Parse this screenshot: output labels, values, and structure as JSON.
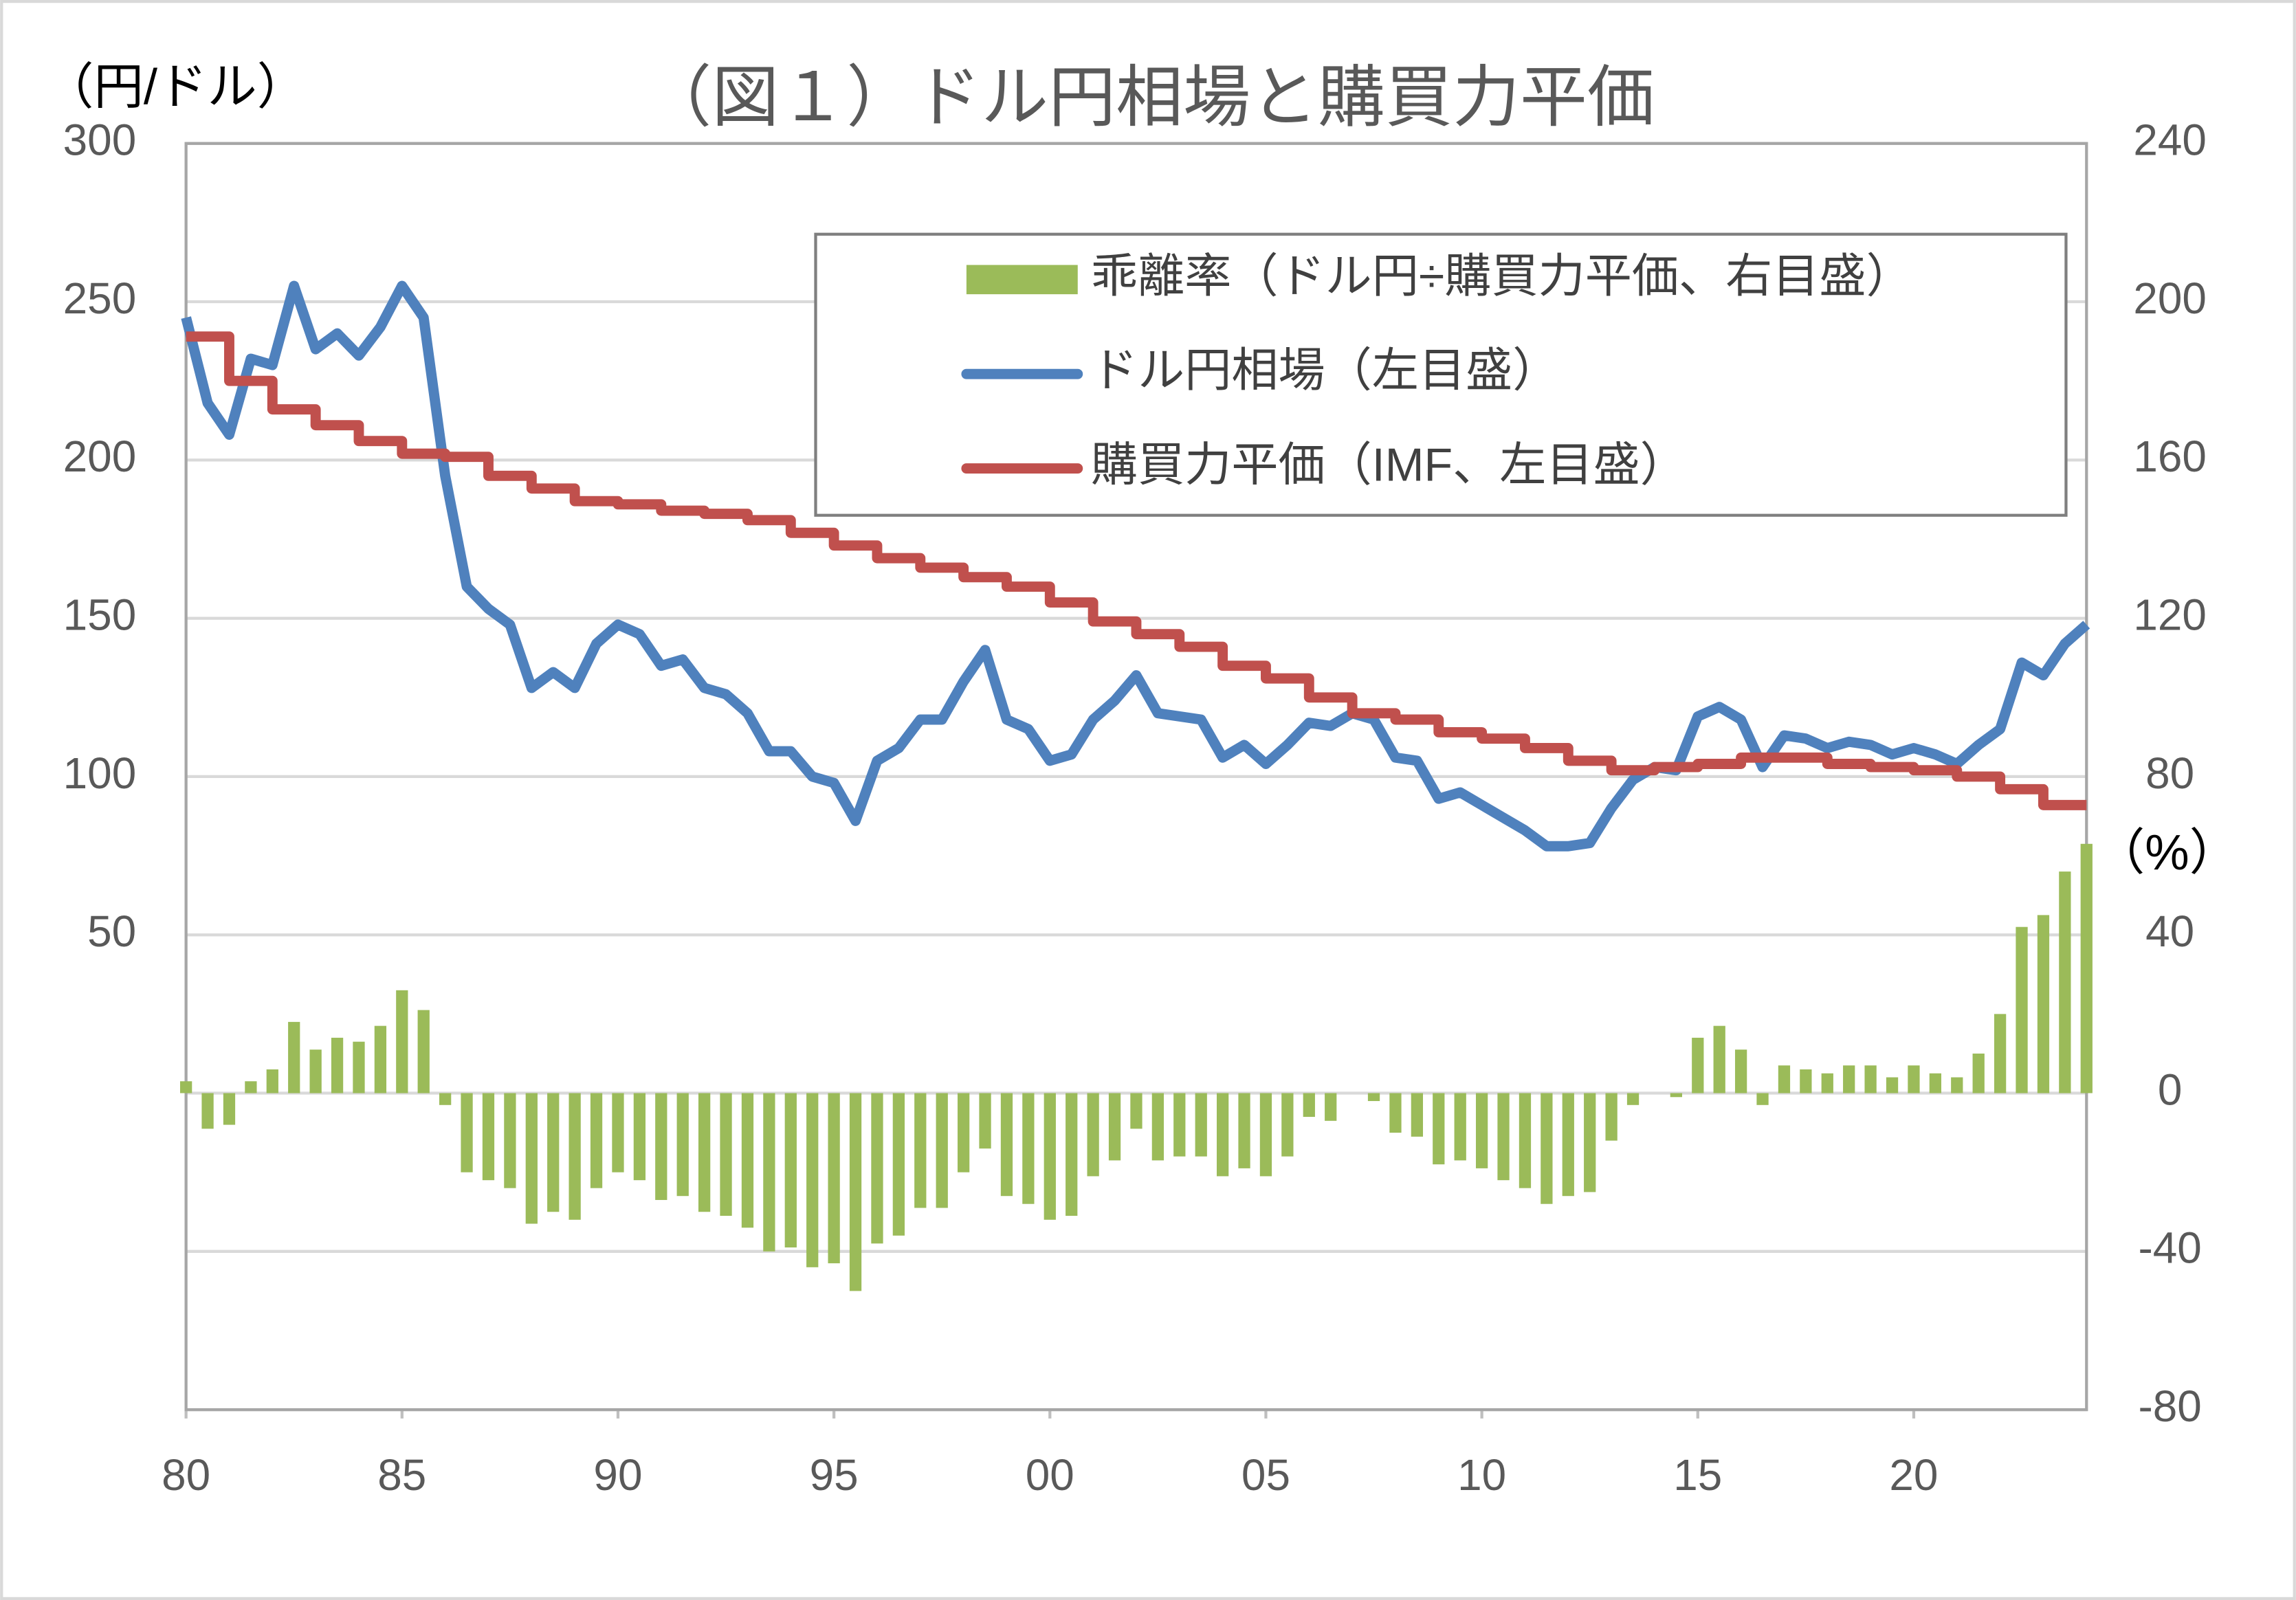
{
  "chart_data": {
    "type": "combo",
    "title": "（図１）ドル円相場と購買力平価",
    "y_label": "（円/ドル）",
    "y2_label": "（%）",
    "x": [
      1980,
      1980.5,
      1981,
      1981.5,
      1982,
      1982.5,
      1983,
      1983.5,
      1984,
      1984.5,
      1985,
      1985.5,
      1986,
      1986.5,
      1987,
      1987.5,
      1988,
      1988.5,
      1989,
      1989.5,
      1990,
      1990.5,
      1991,
      1991.5,
      1992,
      1992.5,
      1993,
      1993.5,
      1994,
      1994.5,
      1995,
      1995.5,
      1996,
      1996.5,
      1997,
      1997.5,
      1998,
      1998.5,
      1999,
      1999.5,
      2000,
      2000.5,
      2001,
      2001.5,
      2002,
      2002.5,
      2003,
      2003.5,
      2004,
      2004.5,
      2005,
      2005.5,
      2006,
      2006.5,
      2007,
      2007.5,
      2008,
      2008.5,
      2009,
      2009.5,
      2010,
      2010.5,
      2011,
      2011.5,
      2012,
      2012.5,
      2013,
      2013.5,
      2014,
      2014.5,
      2015,
      2015.5,
      2016,
      2016.5,
      2017,
      2017.5,
      2018,
      2018.5,
      2019,
      2019.5,
      2020,
      2020.5,
      2021,
      2021.5,
      2022,
      2022.5,
      2023,
      2023.5,
      2024
    ],
    "series": [
      {
        "name": "乖離率（ドル円÷購買力平価、右目盛）",
        "kind": "bar",
        "axis": "y2",
        "color": "#9bbb59",
        "values": [
          3,
          -9,
          -8,
          3,
          6,
          18,
          11,
          14,
          13,
          17,
          26,
          21,
          -3,
          -20,
          -22,
          -24,
          -33,
          -30,
          -32,
          -24,
          -20,
          -22,
          -27,
          -26,
          -30,
          -31,
          -34,
          -40,
          -39,
          -44,
          -43,
          -50,
          -38,
          -36,
          -29,
          -29,
          -20,
          -14,
          -26,
          -28,
          -32,
          -31,
          -21,
          -17,
          -9,
          -17,
          -16,
          -16,
          -21,
          -19,
          -21,
          -16,
          -6,
          -7,
          0,
          -2,
          -10,
          -11,
          -18,
          -17,
          -19,
          -22,
          -24,
          -28,
          -26,
          -25,
          -12,
          -3,
          0,
          -1,
          14,
          17,
          11,
          -3,
          7,
          6,
          5,
          7,
          7,
          4,
          7,
          5,
          4,
          10,
          20,
          42,
          45,
          56,
          63
        ]
      },
      {
        "name": "ドル円相場（左目盛）",
        "kind": "line",
        "color": "#4f81bd",
        "values": [
          245,
          218,
          208,
          232,
          230,
          255,
          235,
          240,
          233,
          242,
          255,
          245,
          195,
          160,
          153,
          148,
          128,
          133,
          128,
          142,
          148,
          145,
          135,
          137,
          128,
          126,
          120,
          108,
          108,
          100,
          98,
          86,
          105,
          109,
          118,
          118,
          130,
          140,
          118,
          115,
          105,
          107,
          118,
          124,
          132,
          120,
          119,
          118,
          106,
          110,
          104,
          110,
          117,
          116,
          120,
          118,
          106,
          105,
          93,
          95,
          91,
          87,
          83,
          78,
          78,
          79,
          90,
          99,
          103,
          102,
          119,
          122,
          118,
          103,
          113,
          112,
          109,
          111,
          110,
          107,
          109,
          107,
          104,
          110,
          115,
          136,
          132,
          142,
          148
        ]
      },
      {
        "name": "購買力平価（IMF、左目盛）",
        "kind": "line",
        "step": true,
        "color": "#c0504d",
        "values": [
          239,
          239,
          225,
          225,
          216,
          216,
          211,
          211,
          206,
          206,
          202,
          202,
          201,
          201,
          195,
          195,
          191,
          191,
          187,
          187,
          186,
          186,
          184,
          184,
          183,
          183,
          181,
          181,
          177,
          177,
          173,
          173,
          169,
          169,
          166,
          166,
          163,
          163,
          160,
          160,
          155,
          155,
          149,
          149,
          145,
          145,
          141,
          141,
          135,
          135,
          131,
          131,
          125,
          125,
          120,
          120,
          118,
          118,
          114,
          114,
          112,
          112,
          109,
          109,
          105,
          105,
          102,
          102,
          103,
          103,
          104,
          104,
          106,
          106,
          106,
          106,
          104,
          104,
          103,
          103,
          102,
          102,
          100,
          100,
          96,
          96,
          91,
          91,
          91
        ]
      }
    ],
    "xlim": [
      1980,
      2024
    ],
    "xticks": [
      {
        "value": 1980,
        "label": "80"
      },
      {
        "value": 1985,
        "label": "85"
      },
      {
        "value": 1990,
        "label": "90"
      },
      {
        "value": 1995,
        "label": "95"
      },
      {
        "value": 2000,
        "label": "00"
      },
      {
        "value": 2005,
        "label": "05"
      },
      {
        "value": 2010,
        "label": "10"
      },
      {
        "value": 2015,
        "label": "15"
      },
      {
        "value": 2020,
        "label": "20"
      }
    ],
    "ylim": [
      -100,
      300
    ],
    "yticks": [
      50,
      100,
      150,
      200,
      250,
      300
    ],
    "y2lim": [
      -80,
      240
    ],
    "y2ticks": [
      -80,
      -40,
      0,
      40,
      80,
      120,
      160,
      200,
      240
    ],
    "grid": true,
    "legend": "top-right"
  }
}
